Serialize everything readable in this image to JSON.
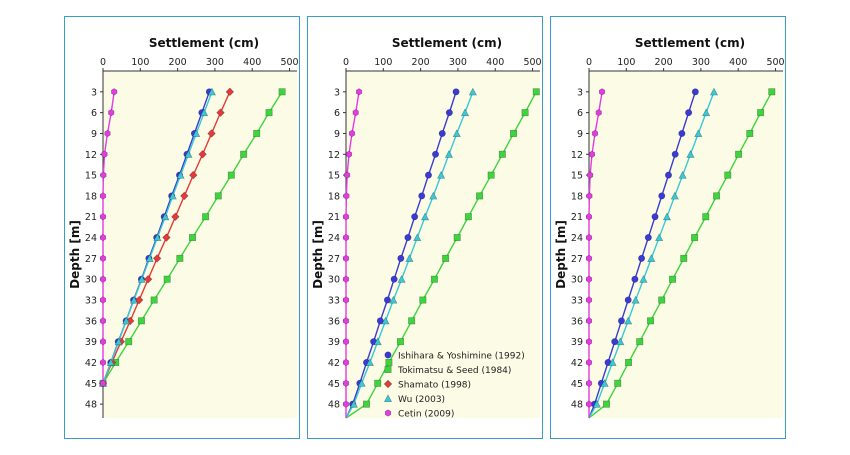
{
  "chart_data": [
    {
      "type": "line",
      "xlabel": "Settlement (cm)",
      "ylabel": "Depth [m]",
      "xlim": [
        0,
        520
      ],
      "ylim": [
        0,
        50
      ],
      "y_inverted": true,
      "x_axis_position": "top",
      "xticks": [
        0,
        100,
        200,
        300,
        400,
        500
      ],
      "yticks": [
        3,
        6,
        9,
        12,
        15,
        18,
        21,
        24,
        27,
        30,
        33,
        36,
        39,
        42,
        45,
        48
      ],
      "background": "#fbfbe6",
      "show_legend": false,
      "series": [
        {
          "name": "Ishihara & Yoshimine (1992)",
          "color": "#3a3ad6",
          "marker": "circle",
          "x": [
            285,
            265,
            245,
            225,
            205,
            184,
            164,
            144,
            123,
            103,
            82,
            62,
            41,
            21,
            0
          ],
          "y": [
            3,
            6,
            9,
            12,
            15,
            18,
            21,
            24,
            27,
            30,
            33,
            36,
            39,
            42,
            45
          ]
        },
        {
          "name": "Tokimatsu & Seed (1984)",
          "color": "#3ed43e",
          "marker": "square",
          "x": [
            480,
            445,
            412,
            377,
            344,
            309,
            275,
            240,
            206,
            172,
            137,
            103,
            69,
            34,
            0
          ],
          "y": [
            3,
            6,
            9,
            12,
            15,
            18,
            21,
            24,
            27,
            30,
            33,
            36,
            39,
            42,
            45
          ]
        },
        {
          "name": "Shamato (1998)",
          "color": "#e43a3a",
          "marker": "diamond",
          "x": [
            340,
            315,
            291,
            267,
            242,
            218,
            194,
            170,
            145,
            121,
            97,
            73,
            48,
            24,
            0
          ],
          "y": [
            3,
            6,
            9,
            12,
            15,
            18,
            21,
            24,
            27,
            30,
            33,
            36,
            39,
            42,
            45
          ]
        },
        {
          "name": "Wu (2003)",
          "color": "#3ac8d4",
          "marker": "triangle",
          "x": [
            292,
            271,
            250,
            229,
            208,
            187,
            167,
            146,
            125,
            104,
            83,
            62,
            42,
            21,
            0
          ],
          "y": [
            3,
            6,
            9,
            12,
            15,
            18,
            21,
            24,
            27,
            30,
            33,
            36,
            39,
            42,
            45
          ]
        },
        {
          "name": "Cetin (2009)",
          "color": "#e43ae4",
          "marker": "hexagon",
          "x": [
            30,
            22,
            12,
            4,
            1,
            0,
            0,
            0,
            0,
            0,
            0,
            0,
            0,
            0,
            0
          ],
          "y": [
            3,
            6,
            9,
            12,
            15,
            18,
            21,
            24,
            27,
            30,
            33,
            36,
            39,
            42,
            45
          ]
        }
      ]
    },
    {
      "type": "line",
      "xlabel": "Settlement (cm)",
      "ylabel": "Depth [m]",
      "xlim": [
        0,
        520
      ],
      "ylim": [
        0,
        50
      ],
      "y_inverted": true,
      "x_axis_position": "top",
      "xticks": [
        0,
        100,
        200,
        300,
        400,
        500
      ],
      "yticks": [
        3,
        6,
        9,
        12,
        15,
        18,
        21,
        24,
        27,
        30,
        33,
        36,
        39,
        42,
        45,
        48
      ],
      "background": "#fbfbe6",
      "show_legend": true,
      "legend_position": "bottom-right",
      "series": [
        {
          "name": "Ishihara & Yoshimine (1992)",
          "color": "#3a3ad6",
          "marker": "circle",
          "x": [
            295,
            277,
            258,
            240,
            221,
            203,
            184,
            166,
            147,
            129,
            111,
            92,
            74,
            55,
            37,
            18,
            0
          ],
          "y": [
            3,
            6,
            9,
            12,
            15,
            18,
            21,
            24,
            27,
            30,
            33,
            36,
            39,
            42,
            45,
            48,
            50
          ]
        },
        {
          "name": "Tokimatsu & Seed (1984)",
          "color": "#3ed43e",
          "marker": "square",
          "x": [
            510,
            480,
            449,
            419,
            389,
            358,
            328,
            298,
            267,
            237,
            206,
            176,
            146,
            115,
            85,
            55,
            0
          ],
          "y": [
            3,
            6,
            9,
            12,
            15,
            18,
            21,
            24,
            27,
            30,
            33,
            36,
            39,
            42,
            45,
            48,
            50
          ]
        },
        {
          "name": "Wu (2003)",
          "color": "#3ac8d4",
          "marker": "triangle",
          "x": [
            340,
            319,
            297,
            276,
            255,
            234,
            212,
            191,
            170,
            149,
            127,
            106,
            85,
            64,
            42,
            21,
            0
          ],
          "y": [
            3,
            6,
            9,
            12,
            15,
            18,
            21,
            24,
            27,
            30,
            33,
            36,
            39,
            42,
            45,
            48,
            50
          ]
        },
        {
          "name": "Cetin (2009)",
          "color": "#e43ae4",
          "marker": "hexagon",
          "x": [
            35,
            26,
            16,
            8,
            3,
            1,
            0,
            0,
            0,
            0,
            0,
            0,
            0,
            0,
            0,
            0,
            0
          ],
          "y": [
            3,
            6,
            9,
            12,
            15,
            18,
            21,
            24,
            27,
            30,
            33,
            36,
            39,
            42,
            45,
            48,
            50
          ]
        }
      ],
      "legend": [
        {
          "label": "Ishihara & Yoshimine (1992)",
          "color": "#3a3ad6",
          "marker": "circle"
        },
        {
          "label": "Tokimatsu & Seed (1984)",
          "color": "#3ed43e",
          "marker": "square"
        },
        {
          "label": "Shamato (1998)",
          "color": "#e43a3a",
          "marker": "diamond"
        },
        {
          "label": "Wu (2003)",
          "color": "#3ac8d4",
          "marker": "triangle"
        },
        {
          "label": "Cetin (2009)",
          "color": "#e43ae4",
          "marker": "hexagon"
        }
      ]
    },
    {
      "type": "line",
      "xlabel": "Settlement (cm)",
      "ylabel": "Depth [m]",
      "xlim": [
        0,
        520
      ],
      "ylim": [
        0,
        50
      ],
      "y_inverted": true,
      "x_axis_position": "top",
      "xticks": [
        0,
        100,
        200,
        300,
        400,
        500
      ],
      "yticks": [
        3,
        6,
        9,
        12,
        15,
        18,
        21,
        24,
        27,
        30,
        33,
        36,
        39,
        42,
        45,
        48
      ],
      "background": "#fbfbe6",
      "show_legend": false,
      "series": [
        {
          "name": "Ishihara & Yoshimine (1992)",
          "color": "#3a3ad6",
          "marker": "circle",
          "x": [
            285,
            267,
            249,
            231,
            213,
            195,
            177,
            159,
            141,
            123,
            105,
            87,
            69,
            51,
            33,
            15,
            0
          ],
          "y": [
            3,
            6,
            9,
            12,
            15,
            18,
            21,
            24,
            27,
            30,
            33,
            36,
            39,
            42,
            45,
            48,
            50
          ]
        },
        {
          "name": "Tokimatsu & Seed (1984)",
          "color": "#3ed43e",
          "marker": "square",
          "x": [
            490,
            460,
            431,
            401,
            372,
            342,
            313,
            283,
            254,
            224,
            195,
            165,
            136,
            106,
            77,
            47,
            0
          ],
          "y": [
            3,
            6,
            9,
            12,
            15,
            18,
            21,
            24,
            27,
            30,
            33,
            36,
            39,
            42,
            45,
            48,
            50
          ]
        },
        {
          "name": "Wu (2003)",
          "color": "#3ac8d4",
          "marker": "triangle",
          "x": [
            335,
            314,
            293,
            272,
            251,
            230,
            209,
            188,
            167,
            146,
            125,
            105,
            84,
            63,
            42,
            21,
            0
          ],
          "y": [
            3,
            6,
            9,
            12,
            15,
            18,
            21,
            24,
            27,
            30,
            33,
            36,
            39,
            42,
            45,
            48,
            50
          ]
        },
        {
          "name": "Cetin (2009)",
          "color": "#e43ae4",
          "marker": "hexagon",
          "x": [
            35,
            26,
            16,
            8,
            3,
            1,
            0,
            0,
            0,
            0,
            0,
            0,
            0,
            0,
            0,
            0,
            0
          ],
          "y": [
            3,
            6,
            9,
            12,
            15,
            18,
            21,
            24,
            27,
            30,
            33,
            36,
            39,
            42,
            45,
            48,
            50
          ]
        }
      ]
    }
  ]
}
